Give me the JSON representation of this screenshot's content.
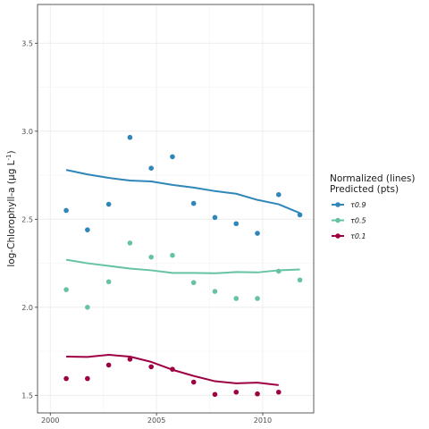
{
  "chart_data": {
    "type": "scatter",
    "xlabel": "",
    "ylabel_prefix": "log-Chlorophyll-a (",
    "ylabel_unit": "μg L",
    "ylabel_sup": "-1",
    "ylabel_suffix": ")",
    "xlim": [
      1999.4,
      2012.4
    ],
    "ylim": [
      1.4,
      3.72
    ],
    "x_ticks": [
      2000,
      2005,
      2010
    ],
    "y_ticks": [
      1.5,
      2.0,
      2.5,
      3.0,
      3.5
    ],
    "y_tick_labels": [
      "1.5",
      "2.0",
      "2.5",
      "3.0",
      "3.5"
    ],
    "grid": true,
    "legend": {
      "position": "right",
      "title_line1": "Normalized (lines)",
      "title_line2": "Predicted (pts)"
    },
    "series": [
      {
        "name": "τ0.9",
        "color": "#2e86b9",
        "line": {
          "x": [
            2000.75,
            2001.75,
            2002.75,
            2003.75,
            2004.75,
            2005.75,
            2006.75,
            2007.75,
            2008.75,
            2009.75,
            2010.75,
            2011.75
          ],
          "y": [
            2.78,
            2.755,
            2.735,
            2.72,
            2.715,
            2.695,
            2.68,
            2.66,
            2.645,
            2.61,
            2.585,
            2.535
          ]
        },
        "points": {
          "x": [
            2000.75,
            2001.75,
            2002.75,
            2003.75,
            2004.75,
            2005.75,
            2006.75,
            2007.75,
            2008.75,
            2009.75,
            2010.75,
            2011.75
          ],
          "y": [
            2.55,
            2.44,
            2.585,
            2.965,
            2.79,
            2.855,
            2.59,
            2.51,
            2.475,
            2.42,
            2.64,
            2.525
          ]
        }
      },
      {
        "name": "τ0.5",
        "color": "#66c2a5",
        "line": {
          "x": [
            2000.75,
            2001.75,
            2002.75,
            2003.75,
            2004.75,
            2005.75,
            2006.75,
            2007.75,
            2008.75,
            2009.75,
            2010.75,
            2011.75
          ],
          "y": [
            2.27,
            2.25,
            2.235,
            2.22,
            2.21,
            2.195,
            2.195,
            2.193,
            2.2,
            2.198,
            2.21,
            2.215
          ]
        },
        "points": {
          "x": [
            2000.75,
            2001.75,
            2002.75,
            2003.75,
            2004.75,
            2005.75,
            2006.75,
            2007.75,
            2008.75,
            2009.75,
            2010.75,
            2011.75
          ],
          "y": [
            2.1,
            2.0,
            2.145,
            2.365,
            2.285,
            2.295,
            2.14,
            2.09,
            2.05,
            2.05,
            2.205,
            2.155
          ]
        }
      },
      {
        "name": "τ0.1",
        "color": "#9e0142",
        "line": {
          "x": [
            2000.75,
            2001.75,
            2002.75,
            2003.75,
            2004.75,
            2005.75,
            2006.75,
            2007.75,
            2008.75,
            2009.75,
            2010.75
          ],
          "y": [
            1.72,
            1.718,
            1.73,
            1.72,
            1.69,
            1.645,
            1.61,
            1.58,
            1.568,
            1.572,
            1.558
          ]
        },
        "points": {
          "x": [
            2000.75,
            2001.75,
            2002.75,
            2003.75,
            2004.75,
            2005.75,
            2006.75,
            2007.75,
            2008.75,
            2009.75,
            2010.75
          ],
          "y": [
            1.595,
            1.595,
            1.672,
            1.705,
            1.662,
            1.648,
            1.575,
            1.505,
            1.518,
            1.508,
            1.518
          ]
        }
      }
    ]
  }
}
